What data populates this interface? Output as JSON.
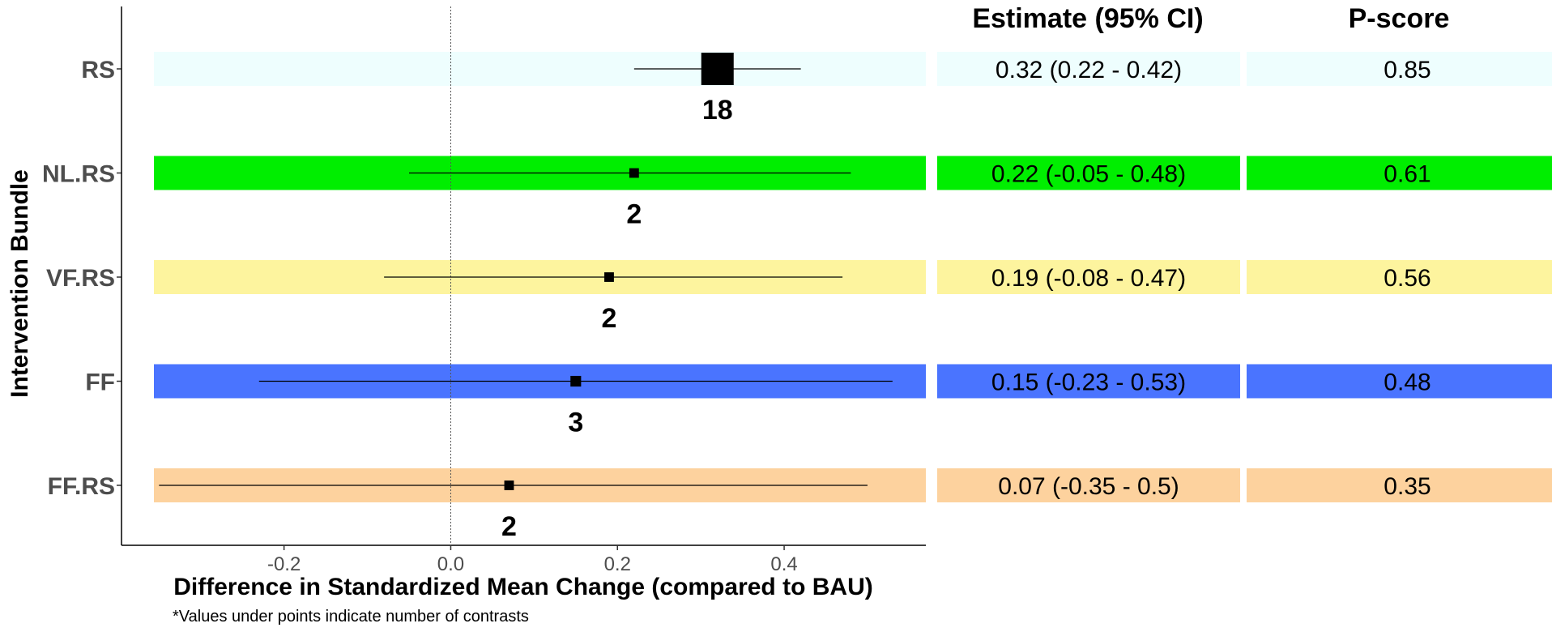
{
  "chart_data": {
    "type": "forest",
    "x_axis_title": "Difference in Standardized Mean Change (compared to BAU)",
    "y_axis_title": "Intervention Bundle",
    "footnote": "*Values under points indicate number of contrasts",
    "columns": {
      "estimate_header": "Estimate (95% CI)",
      "pscore_header": "P-score"
    },
    "x_ticks": [
      {
        "value": -0.2,
        "label": "-0.2"
      },
      {
        "value": 0.0,
        "label": "0.0"
      },
      {
        "value": 0.2,
        "label": "0.2"
      },
      {
        "value": 0.4,
        "label": "0.4"
      }
    ],
    "xlim": [
      -0.395,
      0.57
    ],
    "reference_line": 0,
    "rows": [
      {
        "label": "RS",
        "estimate": 0.32,
        "lower": 0.22,
        "upper": 0.42,
        "ci_text": "0.32 (0.22 - 0.42)",
        "pscore": "0.85",
        "contrasts": "18",
        "color": "#eefefe",
        "weight": 1.0
      },
      {
        "label": "NL.RS",
        "estimate": 0.22,
        "lower": -0.05,
        "upper": 0.48,
        "ci_text": "0.22 (-0.05 - 0.48)",
        "pscore": "0.61",
        "contrasts": "2",
        "color": "#00ee00",
        "weight": 0.12
      },
      {
        "label": "VF.RS",
        "estimate": 0.19,
        "lower": -0.08,
        "upper": 0.47,
        "ci_text": "0.19 (-0.08 - 0.47)",
        "pscore": "0.56",
        "contrasts": "2",
        "color": "#fdf49e",
        "weight": 0.12
      },
      {
        "label": "FF",
        "estimate": 0.15,
        "lower": -0.23,
        "upper": 0.53,
        "ci_text": "0.15 (-0.23 - 0.53)",
        "pscore": "0.48",
        "contrasts": "3",
        "color": "#4a74ff",
        "weight": 0.16
      },
      {
        "label": "FF.RS",
        "estimate": 0.07,
        "lower": -0.35,
        "upper": 0.5,
        "ci_text": "0.07 (-0.35 - 0.5)",
        "pscore": "0.35",
        "contrasts": "2",
        "color": "#fdd29e",
        "weight": 0.12
      }
    ]
  }
}
